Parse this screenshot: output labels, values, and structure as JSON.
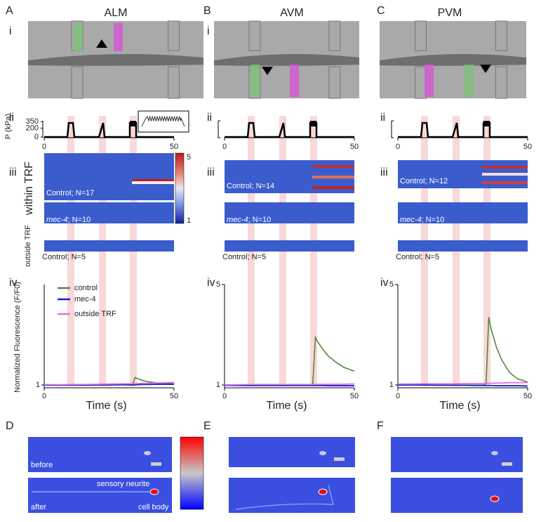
{
  "columns": [
    {
      "letter": "A",
      "neuron": "ALM",
      "row_labels": [
        "i",
        "ii",
        "iii",
        "iv"
      ],
      "pressure": {
        "ylabel": "P (kPa)",
        "yticks": [
          350,
          200,
          0
        ],
        "xticks": [
          0,
          50
        ]
      },
      "heatmaps": {
        "control": "Control; N=17",
        "mec4_gene": "mec-4",
        "mec4_n": "; N=10",
        "outside": "Control; N=5"
      },
      "colorbar": {
        "max": 5,
        "min": 1
      },
      "row_group_labels": {
        "within": "within TRF",
        "outside": "outside TRF"
      }
    },
    {
      "letter": "B",
      "neuron": "AVM",
      "row_labels": [
        "i",
        "ii",
        "iii",
        "iv"
      ],
      "pressure": {
        "xticks": [
          0,
          50
        ]
      },
      "heatmaps": {
        "control": "Control; N=14",
        "mec4_gene": "mec-4",
        "mec4_n": "; N=10",
        "outside": "Control; N=5"
      }
    },
    {
      "letter": "C",
      "neuron": "PVM",
      "row_labels": [
        "i",
        "ii",
        "iii",
        "iv"
      ],
      "pressure": {
        "xticks": [
          0,
          50
        ]
      },
      "heatmaps": {
        "control": "Control; N=12",
        "mec4_gene": "mec-4",
        "mec4_n": "; N=10",
        "outside": "Control; N=5"
      }
    }
  ],
  "chart_data": [
    {
      "type": "line",
      "xlabel": "Time (s)",
      "ylabel": "Normalized Fluorescence  (F/F0)",
      "x": [
        0,
        5,
        10,
        15,
        20,
        25,
        30,
        33,
        34,
        35,
        36,
        38,
        40,
        43,
        46,
        50
      ],
      "xlim": [
        0,
        50
      ],
      "xticks": [
        0,
        50
      ],
      "ylim": [
        1,
        5
      ],
      "yticks": [
        1
      ],
      "series": [
        {
          "name": "control",
          "color": "#4f8a3c",
          "values": [
            1,
            1,
            1,
            1,
            1,
            1,
            1.01,
            1.01,
            1.02,
            1.3,
            1.25,
            1.18,
            1.13,
            1.09,
            1.06,
            1.05
          ]
        },
        {
          "name": "mec-4",
          "color": "#1a1ad8",
          "values": [
            1,
            0.99,
            1,
            0.99,
            1,
            1,
            1.01,
            1,
            1,
            1.01,
            1.01,
            1.02,
            1.02,
            1.03,
            1.03,
            1.03
          ]
        },
        {
          "name": "outside TRF",
          "color": "#e070e0",
          "values": [
            1.02,
            1.01,
            1.02,
            1.02,
            1.03,
            1.04,
            1.05,
            1.05,
            1.05,
            1.06,
            1.06,
            1.07,
            1.07,
            1.08,
            1.09,
            1.1
          ]
        }
      ]
    },
    {
      "type": "line",
      "xlabel": "Time (s)",
      "x": [
        0,
        5,
        10,
        15,
        20,
        25,
        30,
        33,
        34,
        35,
        36,
        38,
        40,
        43,
        46,
        50
      ],
      "xlim": [
        0,
        50
      ],
      "xticks": [
        0,
        50
      ],
      "ylim": [
        1,
        5
      ],
      "yticks": [
        1,
        5
      ],
      "series": [
        {
          "color": "#4f8a3c",
          "values": [
            1,
            1,
            1,
            1,
            1,
            1,
            1,
            1,
            1.05,
            2.9,
            2.7,
            2.4,
            2.15,
            1.9,
            1.7,
            1.55
          ]
        },
        {
          "color": "#1a1ad8",
          "values": [
            0.99,
            0.98,
            0.98,
            0.98,
            0.98,
            0.98,
            0.98,
            0.98,
            0.98,
            0.98,
            0.98,
            0.98,
            0.97,
            0.97,
            0.97,
            0.97
          ]
        },
        {
          "color": "#e070e0",
          "values": [
            1.01,
            1.01,
            1.02,
            1.02,
            1.02,
            1.02,
            1.02,
            1.02,
            1.02,
            1.02,
            1.03,
            1.03,
            1.03,
            1.03,
            1.03,
            1.04
          ]
        }
      ]
    },
    {
      "type": "line",
      "xlabel": "Time (s)",
      "x": [
        0,
        5,
        10,
        15,
        20,
        25,
        30,
        33,
        34,
        35,
        36,
        38,
        40,
        43,
        46,
        50
      ],
      "xlim": [
        0,
        50
      ],
      "xticks": [
        0,
        50
      ],
      "ylim": [
        1,
        5
      ],
      "yticks": [
        1,
        5
      ],
      "series": [
        {
          "color": "#4f8a3c",
          "values": [
            1,
            1,
            1,
            1,
            1,
            1,
            1,
            1,
            1.05,
            3.7,
            3.2,
            2.5,
            2,
            1.5,
            1.25,
            1.12
          ]
        },
        {
          "color": "#1a1ad8",
          "values": [
            1,
            1,
            1,
            0.99,
            0.99,
            0.99,
            0.98,
            0.98,
            0.98,
            0.98,
            0.98,
            0.97,
            0.97,
            0.97,
            0.97,
            0.96
          ]
        },
        {
          "color": "#e070e0",
          "values": [
            1.04,
            1.04,
            1.05,
            1.05,
            1.05,
            1.06,
            1.06,
            1.06,
            1.07,
            1.07,
            1.07,
            1.08,
            1.08,
            1.09,
            1.09,
            1.1
          ]
        }
      ]
    }
  ],
  "images": [
    {
      "letter": "D",
      "before": "before",
      "after": "after",
      "neurite": "sensory neurite",
      "cell_body": "cell body"
    },
    {
      "letter": "E"
    },
    {
      "letter": "F"
    }
  ]
}
